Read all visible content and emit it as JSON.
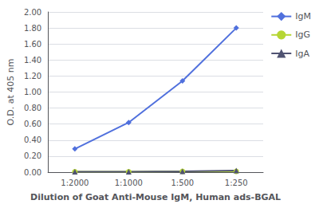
{
  "chart_data": {
    "type": "line",
    "xlabel": "Dilution of Goat Anti-Mouse IgM, Human ads-BGAL",
    "ylabel": "O.D. at 405 nm",
    "categories": [
      "1:2000",
      "1:1000",
      "1:500",
      "1:250"
    ],
    "series": [
      {
        "name": "IgM",
        "marker": "diamond",
        "values": [
          0.29,
          0.62,
          1.14,
          1.8
        ]
      },
      {
        "name": "IgG",
        "marker": "circle",
        "values": [
          0.005,
          0.005,
          0.01,
          0.01
        ]
      },
      {
        "name": "IgA",
        "marker": "triangle",
        "values": [
          0.005,
          0.005,
          0.01,
          0.02
        ]
      }
    ],
    "ylim": [
      0.0,
      2.0
    ],
    "yticks": [
      {
        "value": 0.0,
        "label": "0.00"
      },
      {
        "value": 0.2,
        "label": "0.20"
      },
      {
        "value": 0.4,
        "label": "0.40"
      },
      {
        "value": 0.6,
        "label": "0.60"
      },
      {
        "value": 0.8,
        "label": "0.80"
      },
      {
        "value": 1.0,
        "label": "1.00"
      },
      {
        "value": 1.2,
        "label": "1.20"
      },
      {
        "value": 1.4,
        "label": "1.40"
      },
      {
        "value": 1.6,
        "label": "1.60"
      },
      {
        "value": 1.8,
        "label": "1.80"
      },
      {
        "value": 2.0,
        "label": "2.00"
      }
    ],
    "grid": true,
    "legend": "right"
  }
}
